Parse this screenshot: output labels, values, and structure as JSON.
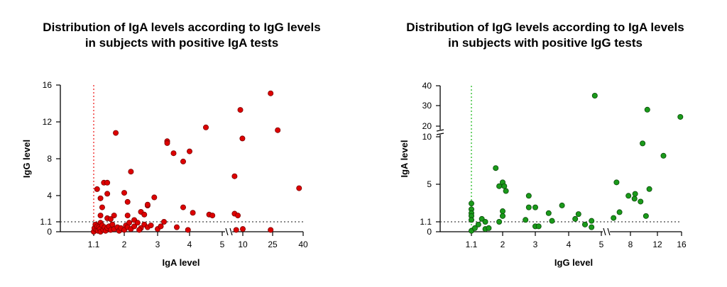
{
  "chart_data": [
    {
      "type": "scatter",
      "title": [
        "Distribution of IgA levels according to IgG levels",
        "in subjects with positive IgA tests"
      ],
      "xlabel": "IgA level",
      "ylabel": "IgG level",
      "x_ticks": [
        "1.1",
        "2",
        "3",
        "4",
        "5",
        "10",
        "25",
        "40"
      ],
      "y_ticks": [
        "0",
        "1.1",
        "4",
        "8",
        "12",
        "16"
      ],
      "x_axis_break": true,
      "cutoff_x": 1.1,
      "cutoff_y": 1.1,
      "xlim": [
        0,
        40
      ],
      "ylim": [
        0,
        16
      ],
      "marker_color": "#dd0000",
      "marker_edge": "#7a0000",
      "cutoff_x_line_color": "#ee2222",
      "cutoff_y_line_color": "#444444",
      "points": [
        {
          "x": 1.2,
          "y": 4.7
        },
        {
          "x": 1.3,
          "y": 3.7
        },
        {
          "x": 1.35,
          "y": 2.7
        },
        {
          "x": 1.4,
          "y": 5.4
        },
        {
          "x": 1.5,
          "y": 5.4
        },
        {
          "x": 1.5,
          "y": 4.2
        },
        {
          "x": 1.3,
          "y": 1.8
        },
        {
          "x": 1.7,
          "y": 1.8
        },
        {
          "x": 1.5,
          "y": 1.5
        },
        {
          "x": 1.6,
          "y": 1.4
        },
        {
          "x": 1.3,
          "y": 1.0
        },
        {
          "x": 1.75,
          "y": 10.8
        },
        {
          "x": 2.0,
          "y": 4.3
        },
        {
          "x": 2.1,
          "y": 3.3
        },
        {
          "x": 2.2,
          "y": 6.6
        },
        {
          "x": 2.1,
          "y": 1.8
        },
        {
          "x": 2.3,
          "y": 1.3
        },
        {
          "x": 2.5,
          "y": 2.2
        },
        {
          "x": 2.7,
          "y": 2.9
        },
        {
          "x": 2.7,
          "y": 3.0
        },
        {
          "x": 2.9,
          "y": 3.8
        },
        {
          "x": 2.6,
          "y": 1.9
        },
        {
          "x": 3.2,
          "y": 1.1
        },
        {
          "x": 3.3,
          "y": 9.9
        },
        {
          "x": 3.3,
          "y": 9.7
        },
        {
          "x": 3.5,
          "y": 8.6
        },
        {
          "x": 3.8,
          "y": 7.7
        },
        {
          "x": 4.0,
          "y": 8.8
        },
        {
          "x": 3.8,
          "y": 2.7
        },
        {
          "x": 4.1,
          "y": 2.1
        },
        {
          "x": 3.6,
          "y": 0.5
        },
        {
          "x": 3.95,
          "y": 0.2
        },
        {
          "x": 4.5,
          "y": 11.4
        },
        {
          "x": 4.6,
          "y": 1.9
        },
        {
          "x": 4.7,
          "y": 1.8
        },
        {
          "x": 8.0,
          "y": 6.1
        },
        {
          "x": 8.0,
          "y": 2.0
        },
        {
          "x": 8.8,
          "y": 1.8
        },
        {
          "x": 9.4,
          "y": 13.3
        },
        {
          "x": 9.9,
          "y": 10.2
        },
        {
          "x": 8.4,
          "y": 0.2
        },
        {
          "x": 10.0,
          "y": 0.3
        },
        {
          "x": 24.0,
          "y": 15.1
        },
        {
          "x": 27.5,
          "y": 11.1
        },
        {
          "x": 24.0,
          "y": 0.2
        },
        {
          "x": 38.0,
          "y": 4.8
        },
        {
          "x": 1.1,
          "y": 0.0
        },
        {
          "x": 1.12,
          "y": 0.4
        },
        {
          "x": 1.15,
          "y": 0.8
        },
        {
          "x": 1.18,
          "y": 0.2
        },
        {
          "x": 1.2,
          "y": 0.6
        },
        {
          "x": 1.22,
          "y": 0.1
        },
        {
          "x": 1.25,
          "y": 0.5
        },
        {
          "x": 1.28,
          "y": 0.3
        },
        {
          "x": 1.3,
          "y": 0.0
        },
        {
          "x": 1.35,
          "y": 0.7
        },
        {
          "x": 1.38,
          "y": 0.2
        },
        {
          "x": 1.42,
          "y": 0.5
        },
        {
          "x": 1.45,
          "y": 0.1
        },
        {
          "x": 1.5,
          "y": 0.4
        },
        {
          "x": 1.55,
          "y": 0.6
        },
        {
          "x": 1.6,
          "y": 0.2
        },
        {
          "x": 1.65,
          "y": 0.8
        },
        {
          "x": 1.7,
          "y": 0.3
        },
        {
          "x": 1.8,
          "y": 0.5
        },
        {
          "x": 1.85,
          "y": 0.1
        },
        {
          "x": 1.9,
          "y": 0.4
        },
        {
          "x": 2.0,
          "y": 0.2
        },
        {
          "x": 2.05,
          "y": 0.7
        },
        {
          "x": 2.1,
          "y": 0.5
        },
        {
          "x": 2.2,
          "y": 0.3
        },
        {
          "x": 2.3,
          "y": 0.6
        },
        {
          "x": 2.4,
          "y": 1.0
        },
        {
          "x": 2.5,
          "y": 0.4
        },
        {
          "x": 2.6,
          "y": 0.8
        },
        {
          "x": 2.7,
          "y": 0.5
        },
        {
          "x": 2.8,
          "y": 0.7
        },
        {
          "x": 3.0,
          "y": 0.3
        },
        {
          "x": 3.1,
          "y": 0.6
        },
        {
          "x": 2.45,
          "y": 0.2
        },
        {
          "x": 2.15,
          "y": 1.0
        }
      ]
    },
    {
      "type": "scatter",
      "title": [
        "Distribution of IgG levels according to IgA levels",
        "in subjects with positive IgG tests"
      ],
      "xlabel": "IgG level",
      "ylabel": "IgA level",
      "x_ticks": [
        "1.1",
        "2",
        "3",
        "4",
        "5",
        "8",
        "12",
        "16"
      ],
      "y_ticks": [
        "0",
        "1.1",
        "5",
        "10",
        "20",
        "30",
        "40"
      ],
      "x_axis_break": true,
      "y_axis_break": true,
      "cutoff_x": 1.1,
      "cutoff_y": 1.1,
      "xlim": [
        0,
        16
      ],
      "ylim": [
        0,
        40
      ],
      "marker_color": "#1a9a1a",
      "marker_edge": "#0a4a0a",
      "cutoff_x_line_color": "#22bb22",
      "cutoff_y_line_color": "#444444",
      "points": [
        {
          "x": 1.1,
          "y": 3.0
        },
        {
          "x": 1.1,
          "y": 2.4
        },
        {
          "x": 1.1,
          "y": 2.0
        },
        {
          "x": 1.1,
          "y": 1.7
        },
        {
          "x": 1.1,
          "y": 1.3
        },
        {
          "x": 1.1,
          "y": 0.1
        },
        {
          "x": 1.2,
          "y": 0.4
        },
        {
          "x": 1.3,
          "y": 0.8
        },
        {
          "x": 1.4,
          "y": 1.4
        },
        {
          "x": 1.5,
          "y": 0.3
        },
        {
          "x": 1.6,
          "y": 0.4
        },
        {
          "x": 1.5,
          "y": 1.1
        },
        {
          "x": 1.8,
          "y": 6.7
        },
        {
          "x": 1.9,
          "y": 4.8
        },
        {
          "x": 2.0,
          "y": 5.2
        },
        {
          "x": 2.05,
          "y": 4.8
        },
        {
          "x": 2.1,
          "y": 4.3
        },
        {
          "x": 2.0,
          "y": 2.2
        },
        {
          "x": 2.0,
          "y": 1.7
        },
        {
          "x": 1.9,
          "y": 1.1
        },
        {
          "x": 2.8,
          "y": 3.8
        },
        {
          "x": 2.8,
          "y": 2.6
        },
        {
          "x": 3.0,
          "y": 2.6
        },
        {
          "x": 2.7,
          "y": 1.3
        },
        {
          "x": 3.0,
          "y": 0.6
        },
        {
          "x": 3.1,
          "y": 0.6
        },
        {
          "x": 3.4,
          "y": 2.0
        },
        {
          "x": 3.5,
          "y": 1.2
        },
        {
          "x": 3.8,
          "y": 2.8
        },
        {
          "x": 4.3,
          "y": 1.9
        },
        {
          "x": 4.2,
          "y": 1.4
        },
        {
          "x": 4.5,
          "y": 0.8
        },
        {
          "x": 4.7,
          "y": 1.2
        },
        {
          "x": 4.7,
          "y": 0.5
        },
        {
          "x": 4.8,
          "y": 35.0
        },
        {
          "x": 6.3,
          "y": 1.5
        },
        {
          "x": 6.6,
          "y": 5.2
        },
        {
          "x": 6.9,
          "y": 2.1
        },
        {
          "x": 7.8,
          "y": 3.8
        },
        {
          "x": 8.6,
          "y": 3.5
        },
        {
          "x": 8.7,
          "y": 4.0
        },
        {
          "x": 9.5,
          "y": 3.2
        },
        {
          "x": 9.8,
          "y": 9.3
        },
        {
          "x": 10.3,
          "y": 1.7
        },
        {
          "x": 10.5,
          "y": 28.0
        },
        {
          "x": 10.8,
          "y": 4.5
        },
        {
          "x": 13.0,
          "y": 8.0
        },
        {
          "x": 15.8,
          "y": 24.5
        }
      ]
    }
  ]
}
